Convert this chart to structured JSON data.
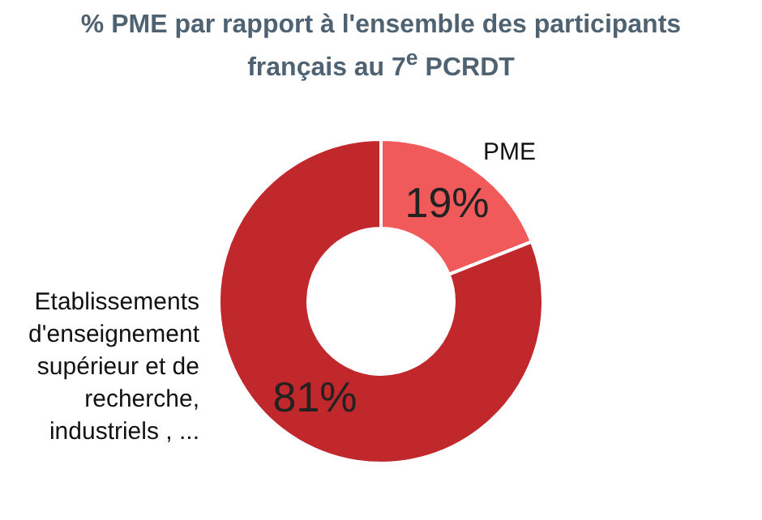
{
  "chart_data": {
    "type": "donut",
    "title": "% PME par rapport à l'ensemble des participants français au 7$^{e}$ PCRDT",
    "categories": [
      "PME",
      "Etablissements d'enseignement supérieur et de recherche, industriels , ..."
    ],
    "values": [
      19,
      81
    ],
    "colors": [
      "#f05a5a",
      "#c1282b"
    ],
    "value_labels": [
      "19%",
      "81%"
    ]
  }
}
